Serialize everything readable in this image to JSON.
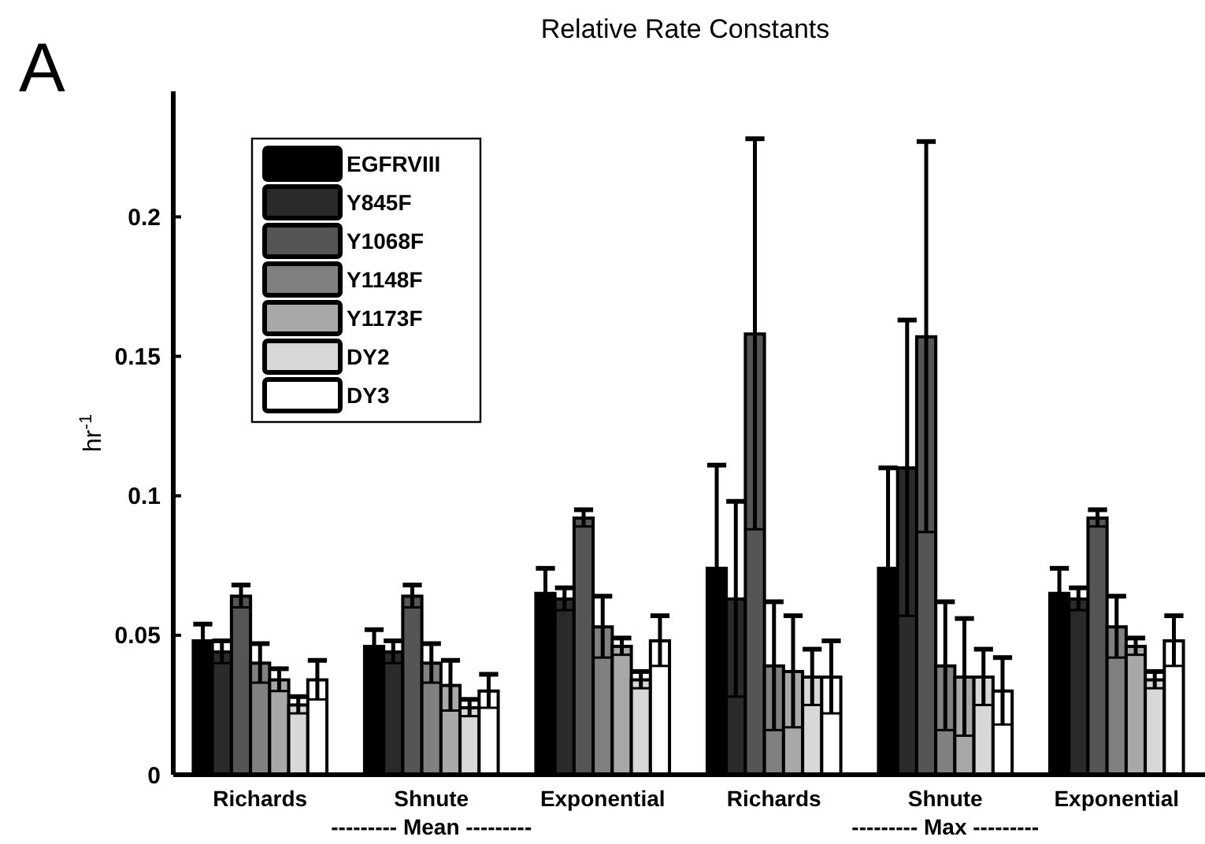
{
  "chart_data": {
    "type": "bar",
    "title": "Relative Rate Constants",
    "ylabel": "hr$^{-1}$",
    "categories": [
      "Richards",
      "Shnute",
      "Exponential",
      "Richards",
      "Shnute",
      "Exponential"
    ],
    "series": [
      {
        "name": "EGFRVIII",
        "color": "#000000",
        "values": [
          0.048,
          0.046,
          0.065,
          0.074,
          0.074,
          0.065
        ],
        "errors": [
          0.006,
          0.006,
          0.009,
          0.037,
          0.036,
          0.009
        ]
      },
      {
        "name": "Y845F",
        "color": "#2a2a2a",
        "values": [
          0.044,
          0.044,
          0.063,
          0.063,
          0.11,
          0.063
        ],
        "errors": [
          0.004,
          0.004,
          0.004,
          0.035,
          0.053,
          0.004
        ]
      },
      {
        "name": "Y1068F",
        "color": "#555555",
        "values": [
          0.064,
          0.064,
          0.092,
          0.158,
          0.157,
          0.092
        ],
        "errors": [
          0.004,
          0.004,
          0.003,
          0.07,
          0.07,
          0.003
        ]
      },
      {
        "name": "Y1148F",
        "color": "#808080",
        "values": [
          0.04,
          0.04,
          0.053,
          0.039,
          0.039,
          0.053
        ],
        "errors": [
          0.007,
          0.007,
          0.011,
          0.023,
          0.023,
          0.011
        ]
      },
      {
        "name": "Y1173F",
        "color": "#a8a8a8",
        "values": [
          0.034,
          0.032,
          0.046,
          0.037,
          0.035,
          0.046
        ],
        "errors": [
          0.004,
          0.009,
          0.003,
          0.02,
          0.021,
          0.003
        ]
      },
      {
        "name": "DY2",
        "color": "#d8d8d8",
        "values": [
          0.025,
          0.024,
          0.034,
          0.035,
          0.035,
          0.034
        ],
        "errors": [
          0.003,
          0.003,
          0.003,
          0.01,
          0.01,
          0.003
        ]
      },
      {
        "name": "DY3",
        "color": "#ffffff",
        "values": [
          0.034,
          0.03,
          0.048,
          0.035,
          0.03,
          0.048
        ],
        "errors": [
          0.007,
          0.006,
          0.009,
          0.013,
          0.012,
          0.009
        ]
      }
    ],
    "ylim": [
      0,
      0.245
    ],
    "yticks": [
      0,
      0.05,
      0.1,
      0.15,
      0.2
    ],
    "legend": "top left",
    "annotations": [
      "A",
      "--------- Mean ---------",
      "--------- Max ---------"
    ]
  }
}
